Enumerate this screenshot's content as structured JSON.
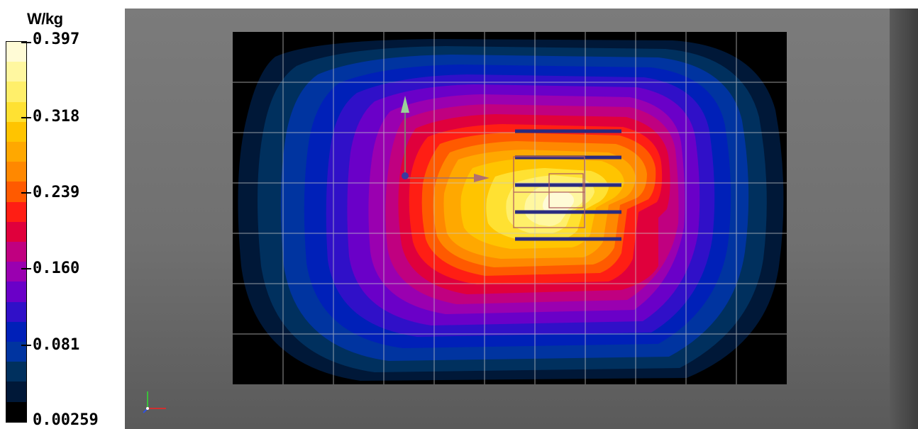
{
  "legend": {
    "unit": "W/kg",
    "ticks": [
      "0.397",
      "0.318",
      "0.239",
      "0.160",
      "0.081",
      "0.00259"
    ],
    "colors": [
      "#fffbd6",
      "#fff7a0",
      "#ffef6a",
      "#ffe132",
      "#ffc400",
      "#ffa800",
      "#ff8800",
      "#ff5a00",
      "#ff1e14",
      "#e0003c",
      "#c00080",
      "#9a00b0",
      "#6a00c8",
      "#3010c8",
      "#0020b8",
      "#0034a0",
      "#00305e",
      "#001838",
      "#000000"
    ]
  },
  "viewport": {
    "background": "#737373",
    "plot_background": "#000000",
    "grid_color": "#c8c8c8",
    "probe_color": "#2a2a80",
    "outline_color": "#b06060",
    "arrow_color": "#b07070",
    "arrow_up_color": "#9ad09a"
  },
  "icons": {
    "axis_triad": "xyz-axis-icon",
    "origin": "origin-point-icon"
  }
}
